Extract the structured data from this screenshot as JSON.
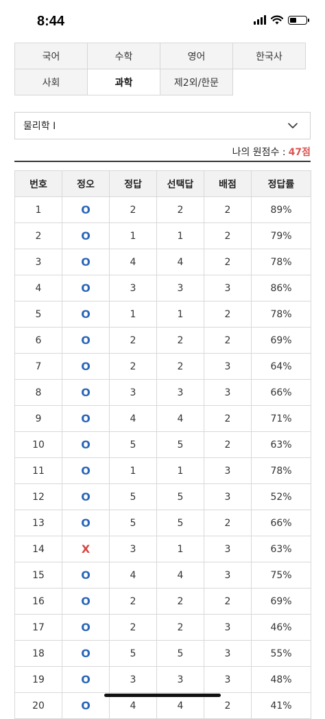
{
  "status_bar": {
    "time": "8:44"
  },
  "subject_tabs": [
    [
      "국어",
      "수학",
      "영어",
      "한국사"
    ],
    [
      "사회",
      "과학",
      "제2외/한문"
    ]
  ],
  "active_tab": "과학",
  "subject_select": {
    "selected": "물리학 I"
  },
  "score": {
    "label": "나의 원점수 : ",
    "value": "47점"
  },
  "table": {
    "headers": [
      "번호",
      "정오",
      "정답",
      "선택답",
      "배점",
      "정답률"
    ],
    "rows": [
      [
        "1",
        "O",
        "2",
        "2",
        "2",
        "89%"
      ],
      [
        "2",
        "O",
        "1",
        "1",
        "2",
        "79%"
      ],
      [
        "3",
        "O",
        "4",
        "4",
        "2",
        "78%"
      ],
      [
        "4",
        "O",
        "3",
        "3",
        "3",
        "86%"
      ],
      [
        "5",
        "O",
        "1",
        "1",
        "2",
        "78%"
      ],
      [
        "6",
        "O",
        "2",
        "2",
        "2",
        "69%"
      ],
      [
        "7",
        "O",
        "2",
        "2",
        "3",
        "64%"
      ],
      [
        "8",
        "O",
        "3",
        "3",
        "3",
        "66%"
      ],
      [
        "9",
        "O",
        "4",
        "4",
        "2",
        "71%"
      ],
      [
        "10",
        "O",
        "5",
        "5",
        "2",
        "63%"
      ],
      [
        "11",
        "O",
        "1",
        "1",
        "3",
        "78%"
      ],
      [
        "12",
        "O",
        "5",
        "5",
        "3",
        "52%"
      ],
      [
        "13",
        "O",
        "5",
        "5",
        "2",
        "66%"
      ],
      [
        "14",
        "X",
        "3",
        "1",
        "3",
        "63%"
      ],
      [
        "15",
        "O",
        "4",
        "4",
        "3",
        "75%"
      ],
      [
        "16",
        "O",
        "2",
        "2",
        "2",
        "69%"
      ],
      [
        "17",
        "O",
        "2",
        "2",
        "3",
        "46%"
      ],
      [
        "18",
        "O",
        "5",
        "5",
        "3",
        "55%"
      ],
      [
        "19",
        "O",
        "3",
        "3",
        "3",
        "48%"
      ],
      [
        "20",
        "O",
        "4",
        "4",
        "2",
        "41%"
      ]
    ]
  },
  "colors": {
    "correct": "#2a66b8",
    "wrong": "#d64541",
    "score": "#d9534f"
  }
}
